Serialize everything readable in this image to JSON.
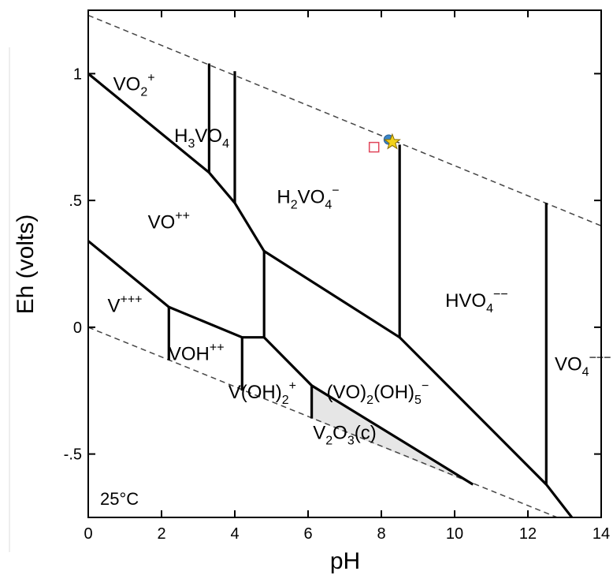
{
  "chart_data": {
    "type": "line",
    "title": "",
    "xlabel": "pH",
    "ylabel": "Eh (volts)",
    "xlim": [
      0,
      14
    ],
    "ylim": [
      -0.75,
      1.25
    ],
    "x_ticks": [
      0,
      2,
      4,
      6,
      8,
      10,
      12,
      14
    ],
    "y_ticks": [
      -0.5,
      0,
      0.5,
      1
    ],
    "x_tick_labels": [
      "0",
      "2",
      "4",
      "6",
      "8",
      "10",
      "12",
      "14"
    ],
    "y_tick_labels": [
      "-.5",
      "0",
      ".5",
      "1"
    ],
    "grid": false,
    "annotation": "25°C",
    "water_stability_lines": [
      {
        "style": "dashed",
        "x": [
          0,
          14
        ],
        "y": [
          1.23,
          0.4
        ]
      },
      {
        "style": "dashed",
        "x": [
          0,
          12.8
        ],
        "y": [
          0.0,
          -0.75
        ]
      }
    ],
    "boundaries": [
      {
        "x": [
          0,
          3.3,
          4.0,
          4.8
        ],
        "y": [
          1.0,
          0.61,
          0.49,
          0.3
        ]
      },
      {
        "x": [
          4.8,
          8.5,
          12.5,
          13.2
        ],
        "y": [
          0.3,
          -0.04,
          -0.62,
          -0.75
        ]
      },
      {
        "x": [
          0,
          2.2,
          4.2,
          4.8
        ],
        "y": [
          0.34,
          0.08,
          -0.04,
          -0.04
        ]
      },
      {
        "x": [
          4.8,
          6.1,
          10.5
        ],
        "y": [
          -0.04,
          -0.23,
          -0.62
        ]
      },
      {
        "x": [
          3.3,
          3.3
        ],
        "y": [
          0.61,
          1.04
        ]
      },
      {
        "x": [
          4.0,
          4.0
        ],
        "y": [
          0.49,
          1.01
        ]
      },
      {
        "x": [
          4.8,
          4.8
        ],
        "y": [
          0.3,
          -0.04
        ]
      },
      {
        "x": [
          2.2,
          2.2
        ],
        "y": [
          0.08,
          -0.13
        ]
      },
      {
        "x": [
          4.2,
          4.2
        ],
        "y": [
          -0.04,
          -0.25
        ]
      },
      {
        "x": [
          6.1,
          6.1
        ],
        "y": [
          -0.23,
          -0.36
        ]
      },
      {
        "x": [
          8.5,
          8.5
        ],
        "y": [
          -0.04,
          0.72
        ]
      },
      {
        "x": [
          12.5,
          12.5
        ],
        "y": [
          -0.62,
          0.49
        ]
      }
    ],
    "shaded_region": {
      "label": "V2O3(c)",
      "fill": "#e6e6e6",
      "x": [
        6.1,
        6.1,
        10.5
      ],
      "y": [
        -0.23,
        -0.36,
        -0.62
      ]
    },
    "markers": [
      {
        "shape": "square",
        "x": 7.8,
        "y": 0.71,
        "color": "#e0455a"
      },
      {
        "shape": "circle",
        "x": 8.2,
        "y": 0.74,
        "color": "#3a86c8"
      },
      {
        "shape": "star",
        "x": 8.3,
        "y": 0.73,
        "color": "#f2d21b"
      }
    ],
    "region_labels": [
      {
        "parts": [
          [
            "VO",
            "n"
          ],
          [
            "2",
            "sub"
          ],
          [
            "+",
            "sup"
          ]
        ],
        "x": 1.25,
        "y": 0.935
      },
      {
        "parts": [
          [
            "H",
            "n"
          ],
          [
            "3",
            "sub"
          ],
          [
            "VO",
            "n"
          ],
          [
            "4",
            "sub"
          ]
        ],
        "x": 3.1,
        "y": 0.73
      },
      {
        "parts": [
          [
            "H",
            "n"
          ],
          [
            "2",
            "sub"
          ],
          [
            "VO",
            "n"
          ],
          [
            "4",
            "sub"
          ],
          [
            "−",
            "sup"
          ]
        ],
        "x": 6.0,
        "y": 0.49
      },
      {
        "parts": [
          [
            "VO",
            "n"
          ],
          [
            "++",
            "sup"
          ]
        ],
        "x": 2.2,
        "y": 0.39
      },
      {
        "parts": [
          [
            "HVO",
            "n"
          ],
          [
            "4",
            "sub"
          ],
          [
            "−−",
            "sup"
          ]
        ],
        "x": 10.6,
        "y": 0.08
      },
      {
        "parts": [
          [
            "V",
            "n"
          ],
          [
            "+++",
            "sup"
          ]
        ],
        "x": 1.0,
        "y": 0.06
      },
      {
        "parts": [
          [
            "VOH",
            "n"
          ],
          [
            "++",
            "sup"
          ]
        ],
        "x": 2.95,
        "y": -0.13
      },
      {
        "parts": [
          [
            "V(OH)",
            "n"
          ],
          [
            "2",
            "sub"
          ],
          [
            "+",
            "sup"
          ]
        ],
        "x": 4.75,
        "y": -0.28
      },
      {
        "parts": [
          [
            "(VO)",
            "n"
          ],
          [
            "2",
            "sub"
          ],
          [
            "(OH)",
            "n"
          ],
          [
            "5",
            "sub"
          ],
          [
            "−",
            "sup"
          ]
        ],
        "x": 7.9,
        "y": -0.28
      },
      {
        "parts": [
          [
            "V",
            "n"
          ],
          [
            "2",
            "sub"
          ],
          [
            "O",
            "n"
          ],
          [
            "3",
            "sub"
          ],
          [
            "(c)",
            "n"
          ]
        ],
        "x": 7.0,
        "y": -0.44
      },
      {
        "parts": [
          [
            "VO",
            "n"
          ],
          [
            "4",
            "sub"
          ],
          [
            "−−−",
            "sup"
          ]
        ],
        "x": 13.5,
        "y": -0.17
      }
    ]
  }
}
